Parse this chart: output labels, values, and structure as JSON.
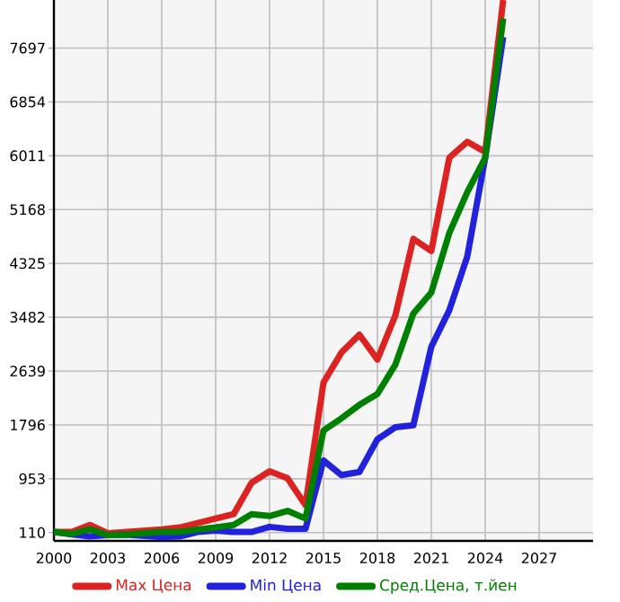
{
  "chart_data": {
    "type": "line",
    "x": [
      2000,
      2001,
      2002,
      2003,
      2004,
      2005,
      2006,
      2007,
      2008,
      2009,
      2010,
      2011,
      2012,
      2013,
      2014,
      2015,
      2016,
      2017,
      2018,
      2019,
      2020,
      2021,
      2022,
      2023,
      2024,
      2025
    ],
    "series": [
      {
        "name": "Max Цена",
        "color": "#dd2222",
        "values": [
          120,
          120,
          230,
          100,
          120,
          140,
          160,
          190,
          260,
          330,
          400,
          890,
          1070,
          960,
          540,
          2460,
          2930,
          3210,
          2820,
          3510,
          4710,
          4520,
          5980,
          6230,
          6070,
          8450
        ]
      },
      {
        "name": "Min Цена",
        "color": "#2222dd",
        "values": [
          120,
          80,
          50,
          70,
          80,
          60,
          40,
          50,
          120,
          140,
          120,
          120,
          200,
          170,
          170,
          1240,
          1010,
          1060,
          1570,
          1760,
          1790,
          3020,
          3590,
          4430,
          5980,
          7870
        ]
      },
      {
        "name": "Сред.Цена, т.йен",
        "color": "#008000",
        "values": [
          120,
          90,
          160,
          70,
          80,
          100,
          120,
          120,
          160,
          190,
          230,
          400,
          370,
          450,
          330,
          1710,
          1900,
          2110,
          2280,
          2740,
          3540,
          3870,
          4800,
          5440,
          5980,
          8160
        ]
      }
    ],
    "xlim": [
      2000,
      2030
    ],
    "ylim": [
      -20,
      8450
    ],
    "xticks": [
      2000,
      2003,
      2006,
      2009,
      2012,
      2015,
      2018,
      2021,
      2024,
      2027
    ],
    "yticks": [
      110,
      953,
      1796,
      2639,
      3482,
      4325,
      5168,
      6011,
      6854,
      7697
    ],
    "grid": true,
    "legend": "bottom",
    "marker": "none",
    "line_style": "solid"
  }
}
